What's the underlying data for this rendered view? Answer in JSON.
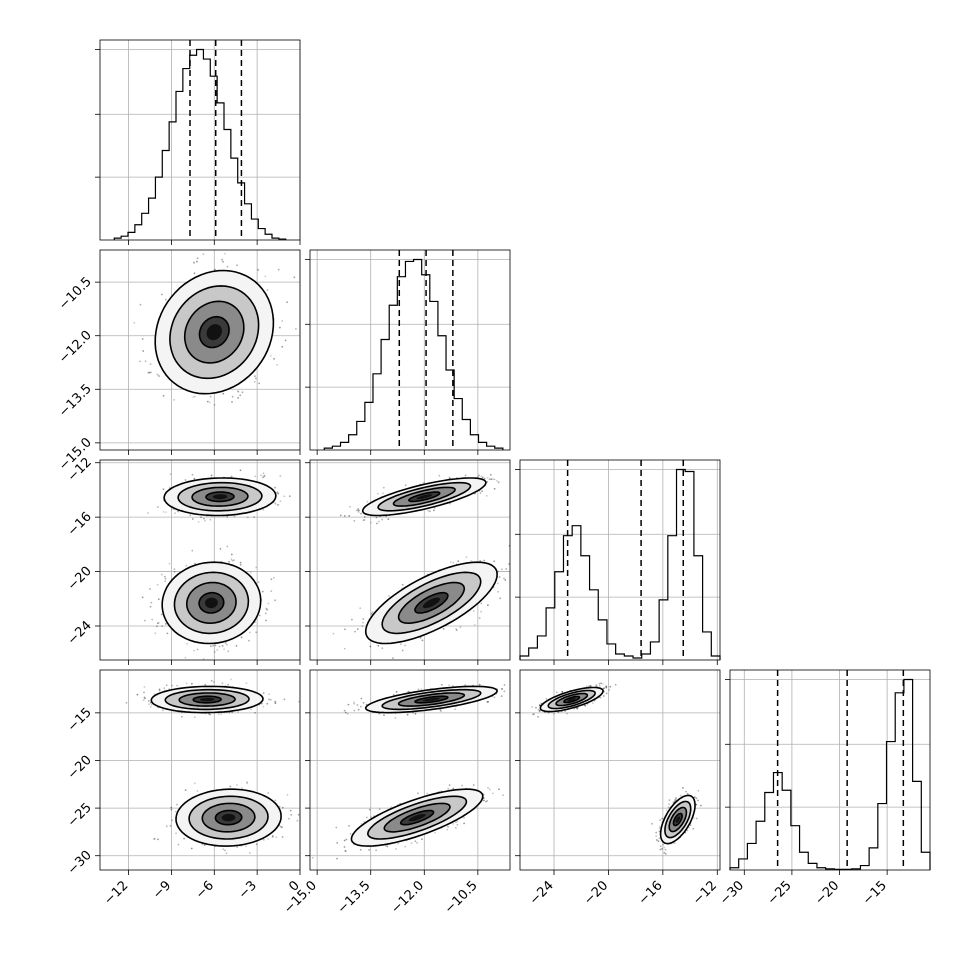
{
  "chart_data": {
    "type": "corner",
    "parameters": [
      {
        "index": 0,
        "range": [
          -14,
          0
        ],
        "ticks": [
          -12,
          -9,
          -6,
          -3,
          0
        ],
        "tick_labels": [
          "−12",
          "−9",
          "−6",
          "−3",
          "0"
        ],
        "quantiles": [
          -7.7,
          -5.9,
          -4.1
        ],
        "modes": [
          {
            "mu": -6.0,
            "sd": 1.8,
            "w": 1
          }
        ]
      },
      {
        "index": 1,
        "range": [
          -15.2,
          -9.6
        ],
        "ticks": [
          -15.0,
          -13.5,
          -12.0,
          -10.5
        ],
        "tick_labels": [
          "−15.0",
          "−13.5",
          "−12.0",
          "−10.5"
        ],
        "quantiles": [
          -12.7,
          -11.95,
          -11.2
        ],
        "modes": [
          {
            "mu": -11.95,
            "sd": 0.75,
            "w": 1
          }
        ]
      },
      {
        "index": 2,
        "range": [
          -26.5,
          -11.8
        ],
        "ticks": [
          -24,
          -20,
          -16,
          -12
        ],
        "tick_labels": [
          "−24",
          "−20",
          "−16",
          "−12"
        ],
        "quantiles": [
          -23.0,
          -17.6,
          -14.5
        ],
        "modes": [
          {
            "mu": -22.5,
            "sd": 1.3,
            "w": 0.5
          },
          {
            "mu": -14.5,
            "sd": 0.6,
            "w": 0.5
          }
        ]
      },
      {
        "index": 3,
        "range": [
          -31.5,
          -10.5
        ],
        "ticks": [
          -30,
          -25,
          -20,
          -15
        ],
        "tick_labels": [
          "−30",
          "−25",
          "−20",
          "−15"
        ],
        "quantiles": [
          -26.5,
          -19.2,
          -13.3
        ],
        "modes": [
          {
            "mu": -26.0,
            "sd": 1.3,
            "w": 0.5
          },
          {
            "mu": -13.6,
            "sd": 0.6,
            "w": 0.5
          }
        ]
      }
    ],
    "histograms": [
      {
        "param": 0,
        "bin_edges_range": [
          -13,
          -1
        ],
        "counts": [
          1,
          2,
          4,
          8,
          14,
          22,
          33,
          47,
          62,
          78,
          90,
          97,
          100,
          95,
          86,
          72,
          58,
          43,
          30,
          19,
          11,
          6,
          3,
          1,
          0.5
        ]
      },
      {
        "param": 1,
        "bin_edges_range": [
          -14.8,
          -9.8
        ],
        "counts": [
          1,
          2,
          4,
          8,
          15,
          25,
          40,
          58,
          76,
          91,
          99,
          100,
          92,
          78,
          60,
          42,
          27,
          16,
          8,
          4,
          2,
          1
        ]
      },
      {
        "param": 2,
        "bin_edges_range": [
          -26.5,
          -11.8
        ],
        "counts": [
          2,
          6,
          12,
          26,
          44,
          62,
          67,
          52,
          35,
          20,
          8,
          3,
          2,
          1,
          3,
          9,
          30,
          62,
          95,
          94,
          52,
          14,
          2
        ]
      },
      {
        "param": 3,
        "bin_edges_range": [
          -31.5,
          -10.5
        ],
        "counts": [
          1,
          5,
          12,
          22,
          35,
          44,
          36,
          20,
          8,
          3,
          1,
          0.5,
          0.3,
          0.3,
          0.5,
          2,
          10,
          30,
          58,
          80,
          86,
          40,
          8
        ]
      }
    ],
    "scatter_panels": [
      {
        "row": 1,
        "col": 0,
        "clusters": [
          {
            "mx": -6.0,
            "my": -11.9,
            "sx": 1.8,
            "sy": 0.75,
            "rho": 0.15
          }
        ]
      },
      {
        "row": 2,
        "col": 0,
        "clusters": [
          {
            "mx": -5.6,
            "my": -14.5,
            "sx": 1.7,
            "sy": 0.6,
            "rho": 0.05
          },
          {
            "mx": -6.2,
            "my": -22.3,
            "sx": 1.5,
            "sy": 1.3,
            "rho": 0.05
          }
        ]
      },
      {
        "row": 2,
        "col": 1,
        "clusters": [
          {
            "mx": -12.0,
            "my": -14.5,
            "sx": 0.75,
            "sy": 0.6,
            "rho": 0.75
          },
          {
            "mx": -11.8,
            "my": -22.3,
            "sx": 0.8,
            "sy": 1.3,
            "rho": 0.7
          }
        ]
      },
      {
        "row": 3,
        "col": 0,
        "clusters": [
          {
            "mx": -6.5,
            "my": -13.6,
            "sx": 1.7,
            "sy": 0.6,
            "rho": 0.05
          },
          {
            "mx": -5.0,
            "my": -26.0,
            "sx": 1.6,
            "sy": 1.3,
            "rho": 0.05
          }
        ]
      },
      {
        "row": 3,
        "col": 1,
        "clusters": [
          {
            "mx": -11.8,
            "my": -13.6,
            "sx": 0.8,
            "sy": 0.6,
            "rho": 0.65
          },
          {
            "mx": -12.2,
            "my": -26.0,
            "sx": 0.8,
            "sy": 1.3,
            "rho": 0.75
          }
        ]
      },
      {
        "row": 3,
        "col": 2,
        "clusters": [
          {
            "mx": -22.7,
            "my": -13.6,
            "sx": 1.0,
            "sy": 0.55,
            "rho": 0.7
          },
          {
            "mx": -14.9,
            "my": -26.2,
            "sx": 0.55,
            "sy": 1.1,
            "rho": 0.6
          }
        ]
      }
    ],
    "contour_levels_sigma": [
      0.5,
      1.0,
      1.5,
      2.0
    ],
    "grid": true,
    "legend": "none",
    "xlabel": "",
    "ylabel": ""
  }
}
